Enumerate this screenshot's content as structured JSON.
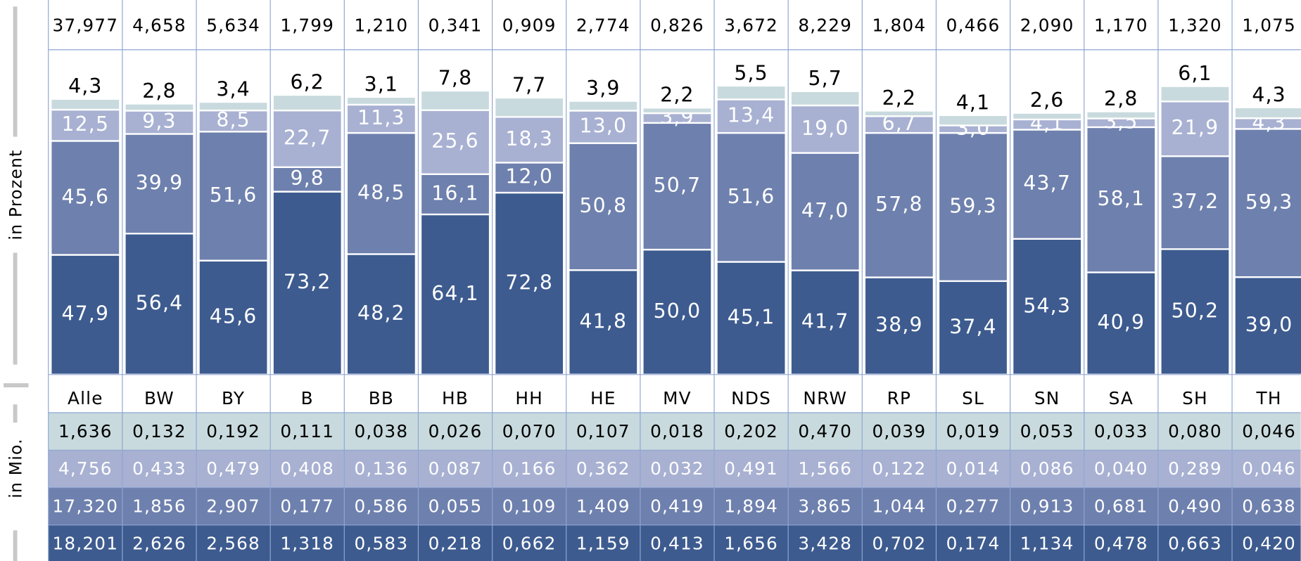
{
  "chart_data": {
    "type": "bar",
    "stacked": true,
    "y_label": "in Prozent",
    "table_label": "in Mio.",
    "categories": [
      "Alle",
      "BW",
      "BY",
      "B",
      "BB",
      "HB",
      "HH",
      "HE",
      "MV",
      "NDS",
      "NRW",
      "RP",
      "SL",
      "SN",
      "SA",
      "SH",
      "TH"
    ],
    "ylim": [
      0,
      130
    ],
    "series": [
      {
        "color": "#3d5b8f",
        "text_color": "#ffffff",
        "values": [
          47.9,
          56.4,
          45.6,
          73.2,
          48.2,
          64.1,
          72.8,
          41.8,
          50.0,
          45.1,
          41.7,
          38.9,
          37.4,
          54.3,
          40.9,
          50.2,
          39.0
        ],
        "value_labels": [
          "47,9",
          "56,4",
          "45,6",
          "73,2",
          "48,2",
          "64,1",
          "72,8",
          "41,8",
          "50,0",
          "45,1",
          "41,7",
          "38,9",
          "37,4",
          "54,3",
          "40,9",
          "50,2",
          "39,0"
        ]
      },
      {
        "color": "#6e80ad",
        "text_color": "#ffffff",
        "values": [
          45.6,
          39.9,
          51.6,
          9.8,
          48.5,
          16.1,
          12.0,
          50.8,
          50.7,
          51.6,
          47.0,
          57.8,
          59.3,
          43.7,
          58.1,
          37.2,
          59.3
        ],
        "value_labels": [
          "45,6",
          "39,9",
          "51,6",
          "9,8",
          "48,5",
          "16,1",
          "12,0",
          "50,8",
          "50,7",
          "51,6",
          "47,0",
          "57,8",
          "59,3",
          "43,7",
          "58,1",
          "37,2",
          "59,3"
        ]
      },
      {
        "color": "#a8b1d2",
        "text_color": "#ffffff",
        "values": [
          12.5,
          9.3,
          8.5,
          22.7,
          11.3,
          25.6,
          18.3,
          13.0,
          3.9,
          13.4,
          19.0,
          6.7,
          3.0,
          4.1,
          3.5,
          21.9,
          4.3
        ],
        "value_labels": [
          "12,5",
          "9,3",
          "8,5",
          "22,7",
          "11,3",
          "25,6",
          "18,3",
          "13,0",
          "3,9",
          "13,4",
          "19,0",
          "6,7",
          "3,0",
          "4,1",
          "3,5",
          "21,9",
          "4,3"
        ]
      },
      {
        "color": "#c8dadd",
        "text_color": "#000000",
        "label_above": true,
        "values": [
          4.3,
          2.8,
          3.4,
          6.2,
          3.1,
          7.8,
          7.7,
          3.9,
          2.2,
          5.5,
          5.7,
          2.2,
          4.1,
          2.6,
          2.8,
          6.1,
          4.3
        ],
        "value_labels": [
          "4,3",
          "2,8",
          "3,4",
          "6,2",
          "3,1",
          "7,8",
          "7,7",
          "3,9",
          "2,2",
          "5,5",
          "5,7",
          "2,2",
          "4,1",
          "2,6",
          "2,8",
          "6,1",
          "4,3"
        ]
      }
    ]
  },
  "table": {
    "totals": [
      "37,977",
      "4,658",
      "5,634",
      "1,799",
      "1,210",
      "0,341",
      "0,909",
      "2,774",
      "0,826",
      "3,672",
      "8,229",
      "1,804",
      "0,466",
      "2,090",
      "1,170",
      "1,320",
      "1,075"
    ],
    "rows": [
      [
        "1,636",
        "0,132",
        "0,192",
        "0,111",
        "0,038",
        "0,026",
        "0,070",
        "0,107",
        "0,018",
        "0,202",
        "0,470",
        "0,039",
        "0,019",
        "0,053",
        "0,033",
        "0,080",
        "0,046"
      ],
      [
        "4,756",
        "0,433",
        "0,479",
        "0,408",
        "0,136",
        "0,087",
        "0,166",
        "0,362",
        "0,032",
        "0,491",
        "1,566",
        "0,122",
        "0,014",
        "0,086",
        "0,040",
        "0,289",
        "0,046"
      ],
      [
        "17,320",
        "1,856",
        "2,907",
        "0,177",
        "0,586",
        "0,055",
        "0,109",
        "1,409",
        "0,419",
        "1,894",
        "3,865",
        "1,044",
        "0,277",
        "0,913",
        "0,681",
        "0,490",
        "0,638"
      ],
      [
        "18,201",
        "2,626",
        "2,568",
        "1,318",
        "0,583",
        "0,218",
        "0,662",
        "1,159",
        "0,413",
        "1,656",
        "3,428",
        "0,702",
        "0,174",
        "1,134",
        "0,478",
        "0,663",
        "0,420"
      ]
    ]
  }
}
